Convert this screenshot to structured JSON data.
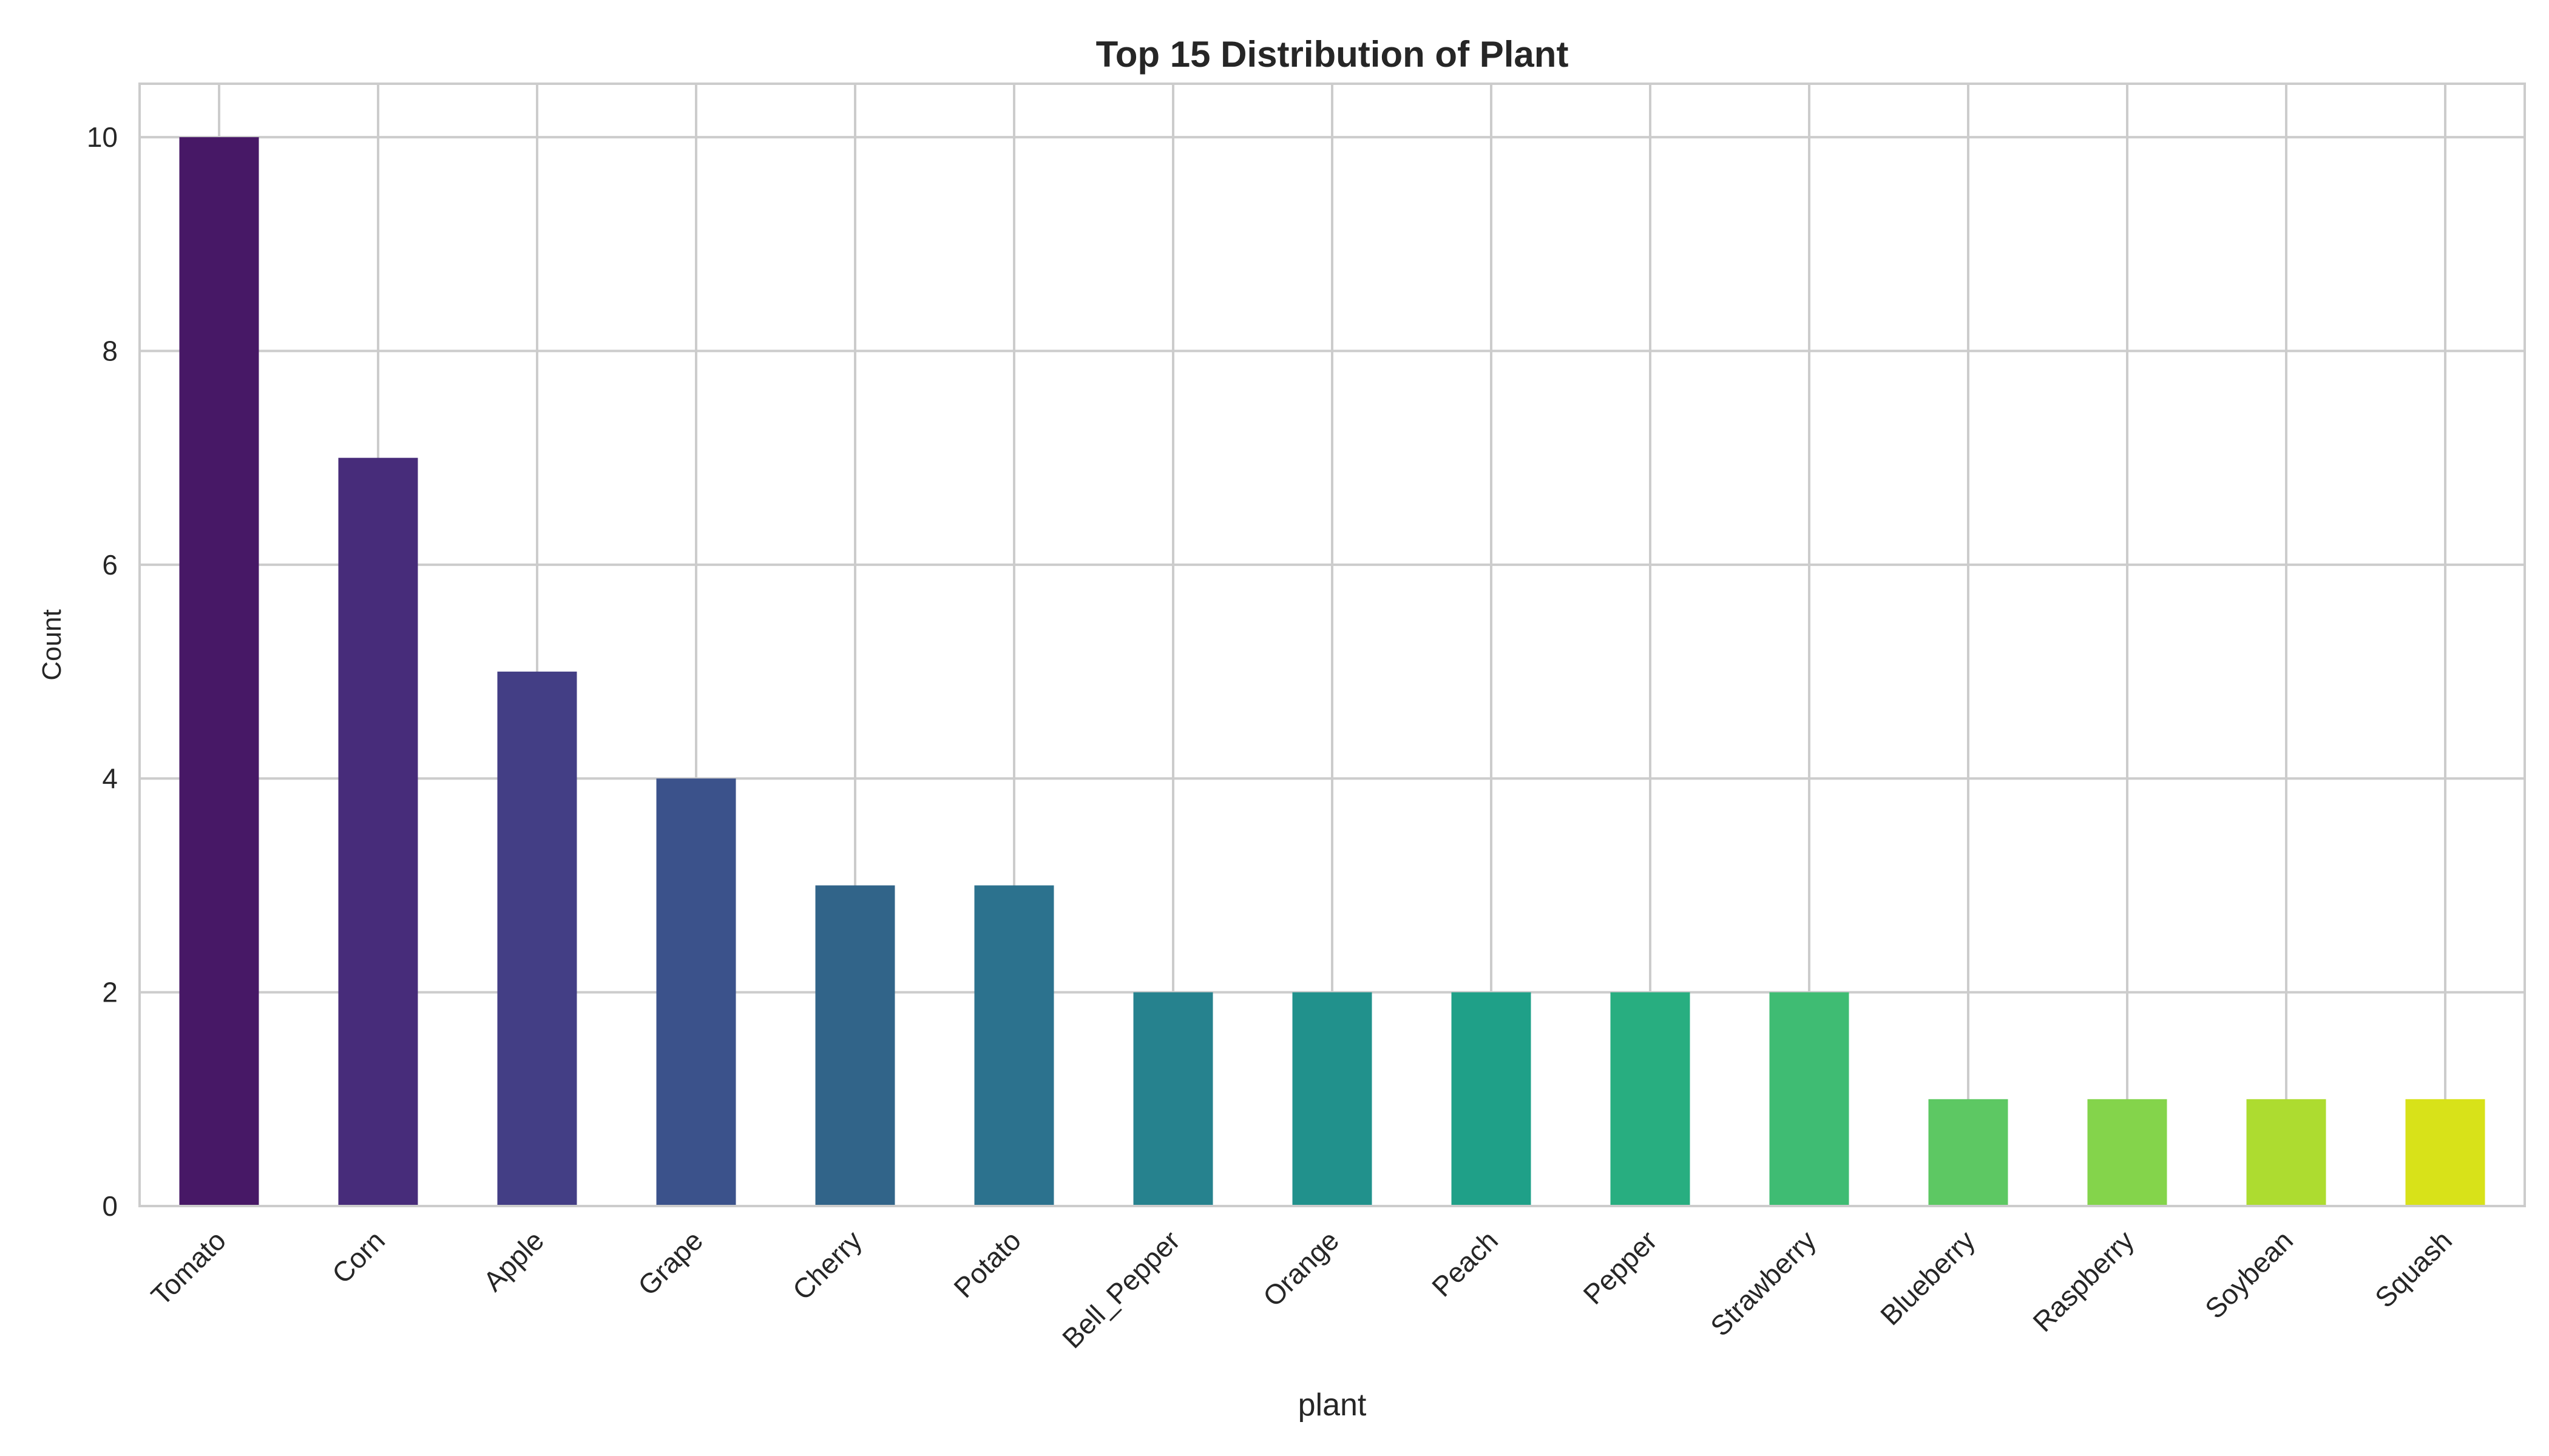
{
  "chart_data": {
    "type": "bar",
    "title": "Top 15 Distribution of Plant",
    "xlabel": "plant",
    "ylabel": "Count",
    "ylim": [
      0,
      10.5
    ],
    "yticks": [
      0,
      2,
      4,
      6,
      8,
      10
    ],
    "grid": true,
    "categories": [
      "Tomato",
      "Corn",
      "Apple",
      "Grape",
      "Cherry",
      "Potato",
      "Bell_Pepper",
      "Orange",
      "Peach",
      "Pepper",
      "Strawberry",
      "Blueberry",
      "Raspberry",
      "Soybean",
      "Squash"
    ],
    "values": [
      10,
      7,
      5,
      4,
      3,
      3,
      2,
      2,
      2,
      2,
      2,
      1,
      1,
      1,
      1
    ],
    "colors": [
      "#471866",
      "#472c7a",
      "#433e85",
      "#3b528b",
      "#316489",
      "#2c728e",
      "#26828e",
      "#21918c",
      "#1fa088",
      "#28ae80",
      "#3fbc73",
      "#5dc863",
      "#84d44b",
      "#addc30",
      "#d8e219"
    ]
  }
}
